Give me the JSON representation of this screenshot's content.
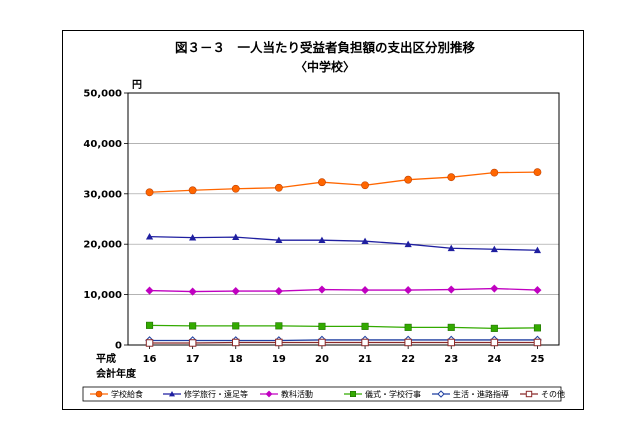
{
  "chart_data": {
    "type": "line",
    "title": "図３－３　一人当たり受益者負担額の支出区分別推移",
    "subtitle": "〈中学校〉",
    "y_unit": "円",
    "x_prefix": "平成",
    "xlabel": "会計年度",
    "ylabel": "",
    "ylim": [
      0,
      50000
    ],
    "yticks": [
      "0",
      "10,000",
      "20,000",
      "30,000",
      "40,000",
      "50,000"
    ],
    "x": [
      "16",
      "17",
      "18",
      "19",
      "20",
      "21",
      "22",
      "23",
      "24",
      "25"
    ],
    "grid": true,
    "legend_position": "bottom",
    "series": [
      {
        "name": "学校給食",
        "color": "#ff6600",
        "marker": "circle",
        "values": [
          30300,
          30700,
          31000,
          31200,
          32300,
          31700,
          32800,
          33300,
          34200,
          34300
        ]
      },
      {
        "name": "修学旅行・遠足等",
        "color": "#1f1fa0",
        "marker": "triangle",
        "values": [
          21500,
          21300,
          21400,
          20800,
          20800,
          20600,
          20000,
          19200,
          19000,
          18800
        ]
      },
      {
        "name": "教科活動",
        "color": "#c000c0",
        "marker": "diamond",
        "values": [
          10800,
          10600,
          10700,
          10700,
          11000,
          10900,
          10900,
          11000,
          11200,
          10900
        ]
      },
      {
        "name": "儀式・学校行事",
        "color": "#33aa00",
        "marker": "square",
        "values": [
          3900,
          3800,
          3800,
          3800,
          3700,
          3700,
          3500,
          3500,
          3300,
          3400
        ]
      },
      {
        "name": "生活・進路指導",
        "color": "#1f3fa0",
        "marker": "diamond-open",
        "values": [
          900,
          900,
          900,
          900,
          1000,
          1000,
          1000,
          1000,
          1000,
          1000
        ]
      },
      {
        "name": "その他",
        "color": "#8b2a2a",
        "marker": "square-open",
        "values": [
          400,
          400,
          500,
          500,
          500,
          500,
          500,
          500,
          500,
          500
        ]
      }
    ]
  }
}
